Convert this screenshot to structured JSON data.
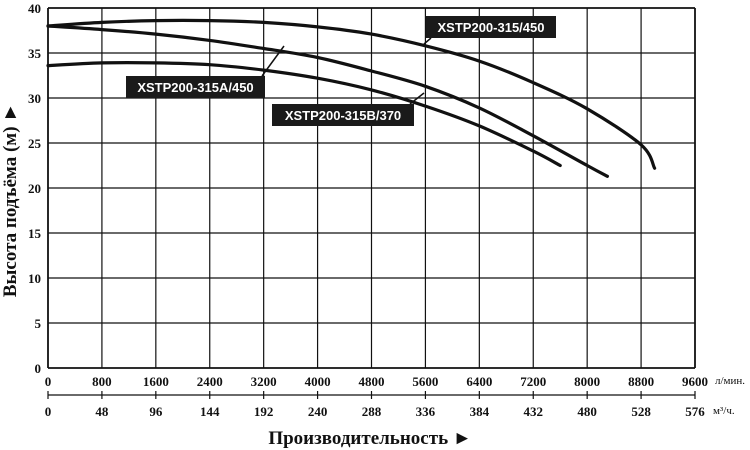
{
  "chart_data": {
    "type": "line",
    "xlabel": "Производительность ►",
    "ylabel": "Высота подъёма (м) ►",
    "x_unit_top": "л/мин.",
    "x_unit_bottom": "м³/ч.",
    "xlim": [
      0,
      9600
    ],
    "ylim": [
      0,
      40
    ],
    "x_ticks_top": [
      "0",
      "800",
      "1600",
      "2400",
      "3200",
      "4000",
      "4800",
      "5600",
      "6400",
      "7200",
      "8000",
      "8800",
      "9600"
    ],
    "x_ticks_bottom": [
      "0",
      "48",
      "96",
      "144",
      "192",
      "240",
      "288",
      "336",
      "384",
      "432",
      "480",
      "528",
      "576"
    ],
    "y_ticks": [
      "0",
      "5",
      "10",
      "15",
      "20",
      "25",
      "30",
      "35",
      "40"
    ],
    "grid": true,
    "series": [
      {
        "name": "XSTP200-315/450",
        "x": [
          0,
          800,
          1600,
          2400,
          3200,
          4000,
          4800,
          5600,
          6400,
          7200,
          8000,
          8800,
          9000
        ],
        "y": [
          38.0,
          38.4,
          38.6,
          38.6,
          38.4,
          37.9,
          37.1,
          35.8,
          34.1,
          31.7,
          28.8,
          24.8,
          22.2
        ]
      },
      {
        "name": "XSTP200-315A/450",
        "x": [
          0,
          800,
          1600,
          2400,
          3200,
          4000,
          4800,
          5600,
          6400,
          7200,
          8000,
          8300
        ],
        "y": [
          38.0,
          37.6,
          37.1,
          36.4,
          35.5,
          34.5,
          33.0,
          31.3,
          28.9,
          25.8,
          22.5,
          21.3
        ]
      },
      {
        "name": "XSTP200-315B/370",
        "x": [
          0,
          800,
          1600,
          2400,
          3200,
          4000,
          4800,
          5600,
          6400,
          7200,
          7600
        ],
        "y": [
          33.6,
          33.9,
          33.9,
          33.7,
          33.1,
          32.2,
          30.9,
          29.1,
          26.9,
          24.1,
          22.5
        ]
      }
    ]
  }
}
